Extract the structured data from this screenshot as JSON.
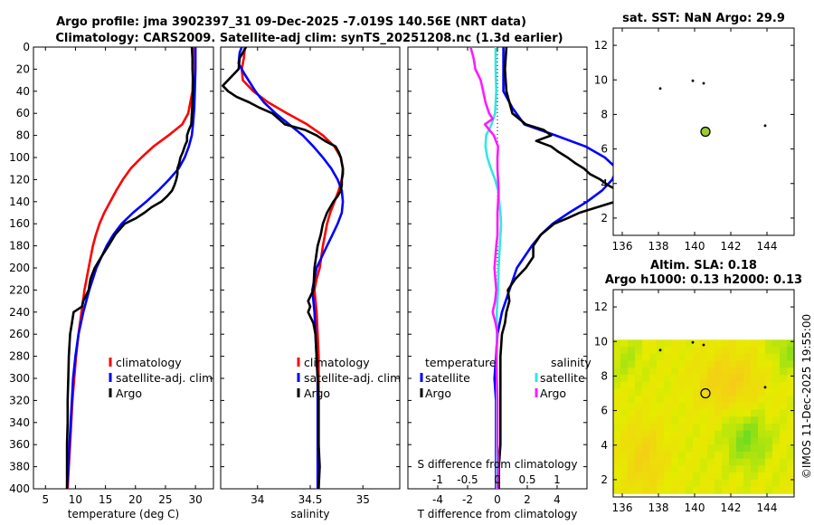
{
  "title_line1": "Argo profile: jma 3902397_31 09-Dec-2025 -7.019S 140.56E (NRT data)",
  "title_line2": "Climatology: CARS2009. Satellite-adj clim: synTS_20251208.nc (1.3d earlier)",
  "colors": {
    "climatology": "#ff0000",
    "satellite": "#0000ff",
    "argo": "#000000",
    "t_diff_sat": "#33e6e6",
    "s_diff_sat": "#ff1aff",
    "map_land": "#000000",
    "argo_marker": "#99cc33"
  },
  "chart_data": [
    {
      "id": "temperature",
      "type": "line",
      "xlabel": "temperature (deg C)",
      "ylabel": "",
      "xlim": [
        3,
        33
      ],
      "ylim": [
        400,
        0
      ],
      "xticks": [
        "5",
        "10",
        "15",
        "20",
        "25",
        "30"
      ],
      "xtick_values": [
        5,
        10,
        15,
        20,
        25,
        30
      ],
      "yticks": [
        "0",
        "20",
        "40",
        "60",
        "80",
        "100",
        "120",
        "140",
        "160",
        "180",
        "200",
        "220",
        "240",
        "260",
        "280",
        "300",
        "320",
        "340",
        "360",
        "380",
        "400"
      ],
      "legend": [
        "climatology",
        "satellite-adj. clim",
        "Argo"
      ],
      "series": [
        {
          "name": "climatology",
          "depth": [
            0,
            20,
            40,
            60,
            70,
            80,
            90,
            100,
            110,
            120,
            130,
            140,
            150,
            160,
            170,
            180,
            200,
            220,
            240,
            260,
            280,
            300,
            320,
            340,
            360,
            380,
            400
          ],
          "values": [
            29.6,
            29.6,
            29.5,
            28.8,
            27.8,
            25.5,
            23,
            21,
            19.2,
            17.9,
            16.8,
            15.8,
            14.8,
            14,
            13.4,
            12.9,
            12.2,
            11.5,
            11,
            10.5,
            10.1,
            9.8,
            9.5,
            9.3,
            9.1,
            8.9,
            8.7
          ]
        },
        {
          "name": "satellite-adj. clim",
          "depth": [
            0,
            20,
            40,
            55,
            70,
            80,
            90,
            100,
            110,
            120,
            130,
            140,
            150,
            160,
            170,
            180,
            200,
            220,
            240,
            260,
            280,
            300,
            320,
            340,
            360,
            380,
            400
          ],
          "values": [
            30,
            30,
            29.9,
            29.8,
            29.6,
            29.4,
            28.9,
            28.2,
            27.2,
            25.6,
            23.8,
            21.8,
            19.6,
            17.7,
            16.3,
            15.2,
            13.5,
            12.3,
            11.3,
            10.5,
            10,
            9.6,
            9.4,
            9.2,
            9,
            8.8,
            8.6
          ]
        },
        {
          "name": "Argo",
          "depth": [
            0,
            10,
            20,
            30,
            40,
            50,
            60,
            70,
            75,
            80,
            85,
            90,
            95,
            100,
            105,
            110,
            115,
            120,
            125,
            130,
            135,
            140,
            145,
            150,
            155,
            160,
            170,
            180,
            190,
            200,
            210,
            220,
            230,
            235,
            240,
            250,
            260,
            270,
            280,
            300,
            320,
            340,
            360,
            380,
            400
          ],
          "values": [
            29.4,
            29.5,
            29.5,
            29.6,
            29.6,
            29.5,
            29.4,
            29.3,
            28.9,
            28.6,
            28.6,
            28.2,
            27.9,
            27.5,
            27.3,
            27,
            27,
            26.8,
            26.5,
            26.1,
            25.3,
            24.3,
            22.7,
            21.5,
            20.1,
            18.2,
            16.6,
            15.5,
            14.3,
            13.2,
            12.5,
            12.2,
            11.3,
            11.1,
            9.7,
            9.4,
            9.1,
            9,
            8.9,
            8.8,
            8.7,
            8.7,
            8.6,
            8.6,
            8.6
          ]
        }
      ]
    },
    {
      "id": "salinity",
      "type": "line",
      "xlabel": "salinity",
      "ylabel": "",
      "xlim": [
        33.65,
        35.35
      ],
      "ylim": [
        400,
        0
      ],
      "xticks": [
        "34",
        "34.5",
        "35"
      ],
      "xtick_values": [
        34,
        34.5,
        35
      ],
      "legend": [
        "climatology",
        "satellite-adj. clim",
        "Argo"
      ],
      "series": [
        {
          "name": "climatology",
          "depth": [
            0,
            10,
            20,
            30,
            40,
            50,
            60,
            70,
            80,
            90,
            100,
            110,
            120,
            130,
            140,
            150,
            160,
            170,
            180,
            200,
            210,
            220,
            240,
            260,
            280,
            300,
            320,
            340,
            360,
            380,
            400
          ],
          "values": [
            33.88,
            33.87,
            33.85,
            33.86,
            33.96,
            34.1,
            34.28,
            34.47,
            34.62,
            34.73,
            34.79,
            34.81,
            34.8,
            34.77,
            34.73,
            34.69,
            34.66,
            34.64,
            34.62,
            34.59,
            34.56,
            34.54,
            34.56,
            34.57,
            34.58,
            34.58,
            34.58,
            34.58,
            34.58,
            34.58,
            34.58
          ]
        },
        {
          "name": "satellite-adj. clim",
          "depth": [
            0,
            5,
            15,
            25,
            40,
            50,
            60,
            70,
            80,
            90,
            100,
            110,
            120,
            130,
            140,
            150,
            160,
            170,
            180,
            200,
            220,
            240,
            260,
            280,
            300,
            320,
            340,
            360,
            380,
            400
          ],
          "values": [
            33.85,
            33.83,
            33.82,
            33.88,
            33.98,
            34.06,
            34.17,
            34.3,
            34.43,
            34.53,
            34.62,
            34.7,
            34.76,
            34.8,
            34.81,
            34.8,
            34.76,
            34.71,
            34.66,
            34.56,
            34.52,
            34.54,
            34.55,
            34.56,
            34.57,
            34.57,
            34.57,
            34.57,
            34.57,
            34.57
          ]
        },
        {
          "name": "Argo",
          "depth": [
            0,
            10,
            20,
            35,
            40,
            45,
            50,
            55,
            60,
            65,
            70,
            75,
            80,
            85,
            90,
            95,
            100,
            105,
            110,
            115,
            120,
            125,
            130,
            135,
            140,
            145,
            150,
            155,
            160,
            170,
            180,
            200,
            220,
            230,
            235,
            240,
            250,
            260,
            280,
            300,
            320,
            340,
            360,
            380,
            400
          ],
          "values": [
            33.89,
            33.83,
            33.82,
            33.67,
            33.72,
            33.8,
            33.92,
            34.02,
            34.14,
            34.2,
            34.26,
            34.45,
            34.56,
            34.64,
            34.74,
            34.77,
            34.79,
            34.8,
            34.81,
            34.81,
            34.8,
            34.8,
            34.79,
            34.76,
            34.72,
            34.69,
            34.66,
            34.64,
            34.62,
            34.6,
            34.57,
            34.54,
            34.53,
            34.48,
            34.5,
            34.48,
            34.53,
            34.55,
            34.56,
            34.57,
            34.58,
            34.58,
            34.58,
            34.59,
            34.58
          ]
        }
      ]
    },
    {
      "id": "difference",
      "type": "line",
      "xlabel": "T difference from climatology",
      "xlabel_top": "S difference from climatology",
      "xlim": [
        -6,
        6
      ],
      "ylim": [
        400,
        0
      ],
      "xticks": [
        "-4",
        "-2",
        "0",
        "2",
        "4"
      ],
      "xtick_values": [
        -4,
        -2,
        0,
        2,
        4
      ],
      "xticks_top": [
        "-1",
        "-0.5",
        "0",
        "0.5",
        "1"
      ],
      "xtick_top_positions": [
        -4,
        -2,
        0,
        2,
        4
      ],
      "legend_left_title": "temperature",
      "legend_right_title": "salinity",
      "legend_left": [
        "satellite",
        "Argo"
      ],
      "legend_right": [
        "satellite",
        "Argo"
      ],
      "series": [
        {
          "name": "T satellite-adj clim",
          "depth": [
            0,
            20,
            40,
            55,
            70,
            80,
            90,
            100,
            110,
            120,
            130,
            140,
            150,
            160,
            170,
            180,
            200,
            220,
            240,
            260,
            280,
            300,
            320,
            340,
            360,
            380,
            400
          ],
          "values": [
            0.4,
            0.4,
            0.4,
            1,
            1.8,
            3.9,
            5.9,
            7.2,
            8,
            7.7,
            7,
            6,
            4.8,
            3.7,
            2.9,
            2.3,
            1.3,
            0.8,
            0.3,
            0,
            -0.1,
            -0.2,
            -0.1,
            -0.1,
            -0.1,
            -0.1,
            -0.1
          ]
        },
        {
          "name": "T Argo",
          "depth": [
            0,
            20,
            40,
            60,
            70,
            75,
            80,
            85,
            90,
            95,
            100,
            105,
            110,
            115,
            120,
            125,
            130,
            135,
            140,
            145,
            150,
            155,
            160,
            170,
            180,
            190,
            200,
            210,
            220,
            230,
            240,
            250,
            260,
            280,
            300,
            320,
            340,
            360,
            380,
            400
          ],
          "values": [
            0.6,
            0.5,
            0.6,
            1,
            1.9,
            3.1,
            3.6,
            2.6,
            3.6,
            4.1,
            4.7,
            5.2,
            5.8,
            6.2,
            6.9,
            7.4,
            8.1,
            8.4,
            7.9,
            6.7,
            5.5,
            4.7,
            3.8,
            2.9,
            2.4,
            2.4,
            1.9,
            1.2,
            0.7,
            0.8,
            0.6,
            0.5,
            0.3,
            0.2,
            0.2,
            0.2,
            0.2,
            0.2,
            0.1,
            0.1
          ]
        },
        {
          "name": "S satellite",
          "depth": [
            0,
            20,
            40,
            60,
            70,
            80,
            90,
            100,
            110,
            120,
            130,
            140,
            150,
            160,
            170,
            180,
            200,
            220,
            240,
            260,
            280,
            300,
            320,
            340,
            360,
            380,
            400
          ],
          "values": [
            -0.03,
            -0.03,
            -0.02,
            -0.04,
            -0.1,
            -0.19,
            -0.2,
            -0.17,
            -0.11,
            -0.04,
            0.01,
            0.03,
            0.05,
            0.06,
            0.05,
            0.04,
            0.02,
            0.01,
            -0.01,
            -0.01,
            -0.01,
            -0.01,
            -0.01,
            -0.01,
            -0.01,
            -0.01,
            -0.01
          ]
        },
        {
          "name": "S Argo",
          "depth": [
            0,
            10,
            20,
            30,
            40,
            50,
            60,
            65,
            70,
            80,
            90,
            100,
            110,
            120,
            130,
            140,
            150,
            160,
            170,
            180,
            200,
            220,
            230,
            240,
            250,
            260,
            280,
            300,
            320,
            340,
            360,
            380,
            400
          ],
          "values": [
            -0.45,
            -0.4,
            -0.37,
            -0.28,
            -0.24,
            -0.2,
            -0.14,
            -0.08,
            -0.21,
            -0.06,
            0.01,
            0,
            0,
            0.01,
            0.02,
            0.01,
            0,
            0,
            0,
            -0.02,
            -0.05,
            -0.02,
            -0.04,
            -0.08,
            -0.03,
            0,
            -0.02,
            -0.01,
            0,
            0,
            0,
            0.01,
            0
          ]
        }
      ]
    },
    {
      "id": "sst_map",
      "type": "scatter",
      "title": "sat. SST: NaN Argo: 29.9",
      "xlim": [
        135.5,
        145.5
      ],
      "ylim": [
        1,
        13
      ],
      "xticks": [
        "136",
        "138",
        "140",
        "142",
        "144"
      ],
      "xtick_values": [
        136,
        138,
        140,
        142,
        144
      ],
      "yticks": [
        "2",
        "4",
        "6",
        "8",
        "10",
        "12"
      ],
      "ytick_values": [
        2,
        4,
        6,
        8,
        10,
        12
      ],
      "argo_position": [
        140.56,
        -7.019
      ],
      "marker_lon": 140.6,
      "marker_lat": 7.0,
      "coast_points": [
        [
          138.1,
          9.5
        ],
        [
          139.9,
          9.95
        ],
        [
          140.5,
          9.8
        ],
        [
          143.9,
          7.35
        ]
      ]
    },
    {
      "id": "sla_map",
      "type": "heatmap",
      "title_line1": "Altim. SLA: 0.18",
      "title_line2": "Argo h1000: 0.13 h2000: 0.13",
      "xlim": [
        135.5,
        145.5
      ],
      "ylim": [
        1,
        13
      ],
      "data_extent": {
        "lon": [
          135.5,
          145.5
        ],
        "lat": [
          1.2,
          10.1
        ]
      },
      "xticks": [
        "136",
        "138",
        "140",
        "142",
        "144"
      ],
      "xtick_values": [
        136,
        138,
        140,
        142,
        144
      ],
      "yticks": [
        "2",
        "4",
        "6",
        "8",
        "10",
        "12"
      ],
      "ytick_values": [
        2,
        4,
        6,
        8,
        10,
        12
      ],
      "marker_lon": 140.6,
      "marker_lat": 7.0,
      "coast_points": [
        [
          138.1,
          9.5
        ],
        [
          139.9,
          9.95
        ],
        [
          140.5,
          9.8
        ],
        [
          143.9,
          7.35
        ]
      ]
    }
  ],
  "footer_stamp": "©IMOS 11-Dec-2025 19:55:00"
}
